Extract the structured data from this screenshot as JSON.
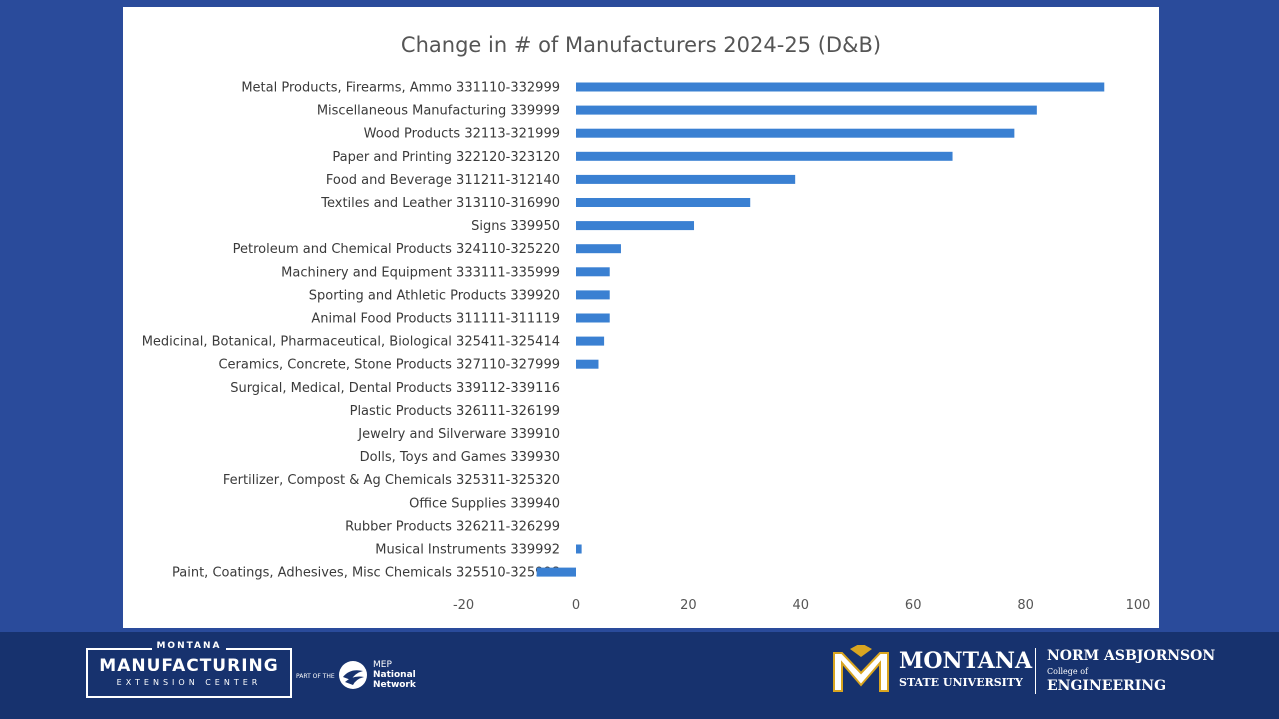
{
  "chart_data": {
    "type": "bar",
    "orientation": "horizontal",
    "title": "Change in # of Manufacturers 2024-25 (D&B)",
    "categories": [
      "Metal Products, Firearms, Ammo 331110-332999",
      "Miscellaneous Manufacturing 339999",
      "Wood Products 32113-321999",
      "Paper and Printing 322120-323120",
      "Food and Beverage 311211-312140",
      "Textiles and Leather 313110-316990",
      "Signs 339950",
      "Petroleum and Chemical Products 324110-325220",
      "Machinery and Equipment 333111-335999",
      "Sporting and Athletic Products 339920",
      "Animal Food Products 311111-311119",
      "Medicinal, Botanical, Pharmaceutical, Biological 325411-325414",
      "Ceramics, Concrete, Stone Products 327110-327999",
      "Surgical, Medical, Dental Products 339112-339116",
      "Plastic Products 326111-326199",
      "Jewelry and Silverware 339910",
      "Dolls, Toys and Games 339930",
      "Fertilizer, Compost & Ag Chemicals 325311-325320",
      "Office Supplies 339940",
      "Rubber Products 326211-326299",
      "Musical Instruments 339992",
      "Paint, Coatings, Adhesives, Misc Chemicals 325510-325998"
    ],
    "values": [
      94,
      82,
      78,
      67,
      39,
      31,
      21,
      8,
      6,
      6,
      6,
      5,
      4,
      0,
      0,
      0,
      0,
      0,
      0,
      0,
      1,
      -7
    ],
    "xlim": [
      -20,
      100
    ],
    "xticks": [
      "-20",
      "0",
      "20",
      "40",
      "60",
      "80",
      "100"
    ],
    "bar_color": "#3a80d2",
    "grid": false,
    "legend": false
  },
  "footer": {
    "mfg_state": "MONTANA",
    "mfg_main": "MANUFACTURING",
    "mfg_sub": "EXTENSION CENTER",
    "part_of": "PART OF THE",
    "mep_line1": "MEP",
    "mep_line2": "National",
    "mep_line3": "Network",
    "msu_name": "MONTANA",
    "msu_sub": "STATE UNIVERSITY",
    "coe_name": "NORM ASBJORNSON",
    "coe_college": "College of",
    "coe_engineering": "ENGINEERING"
  }
}
